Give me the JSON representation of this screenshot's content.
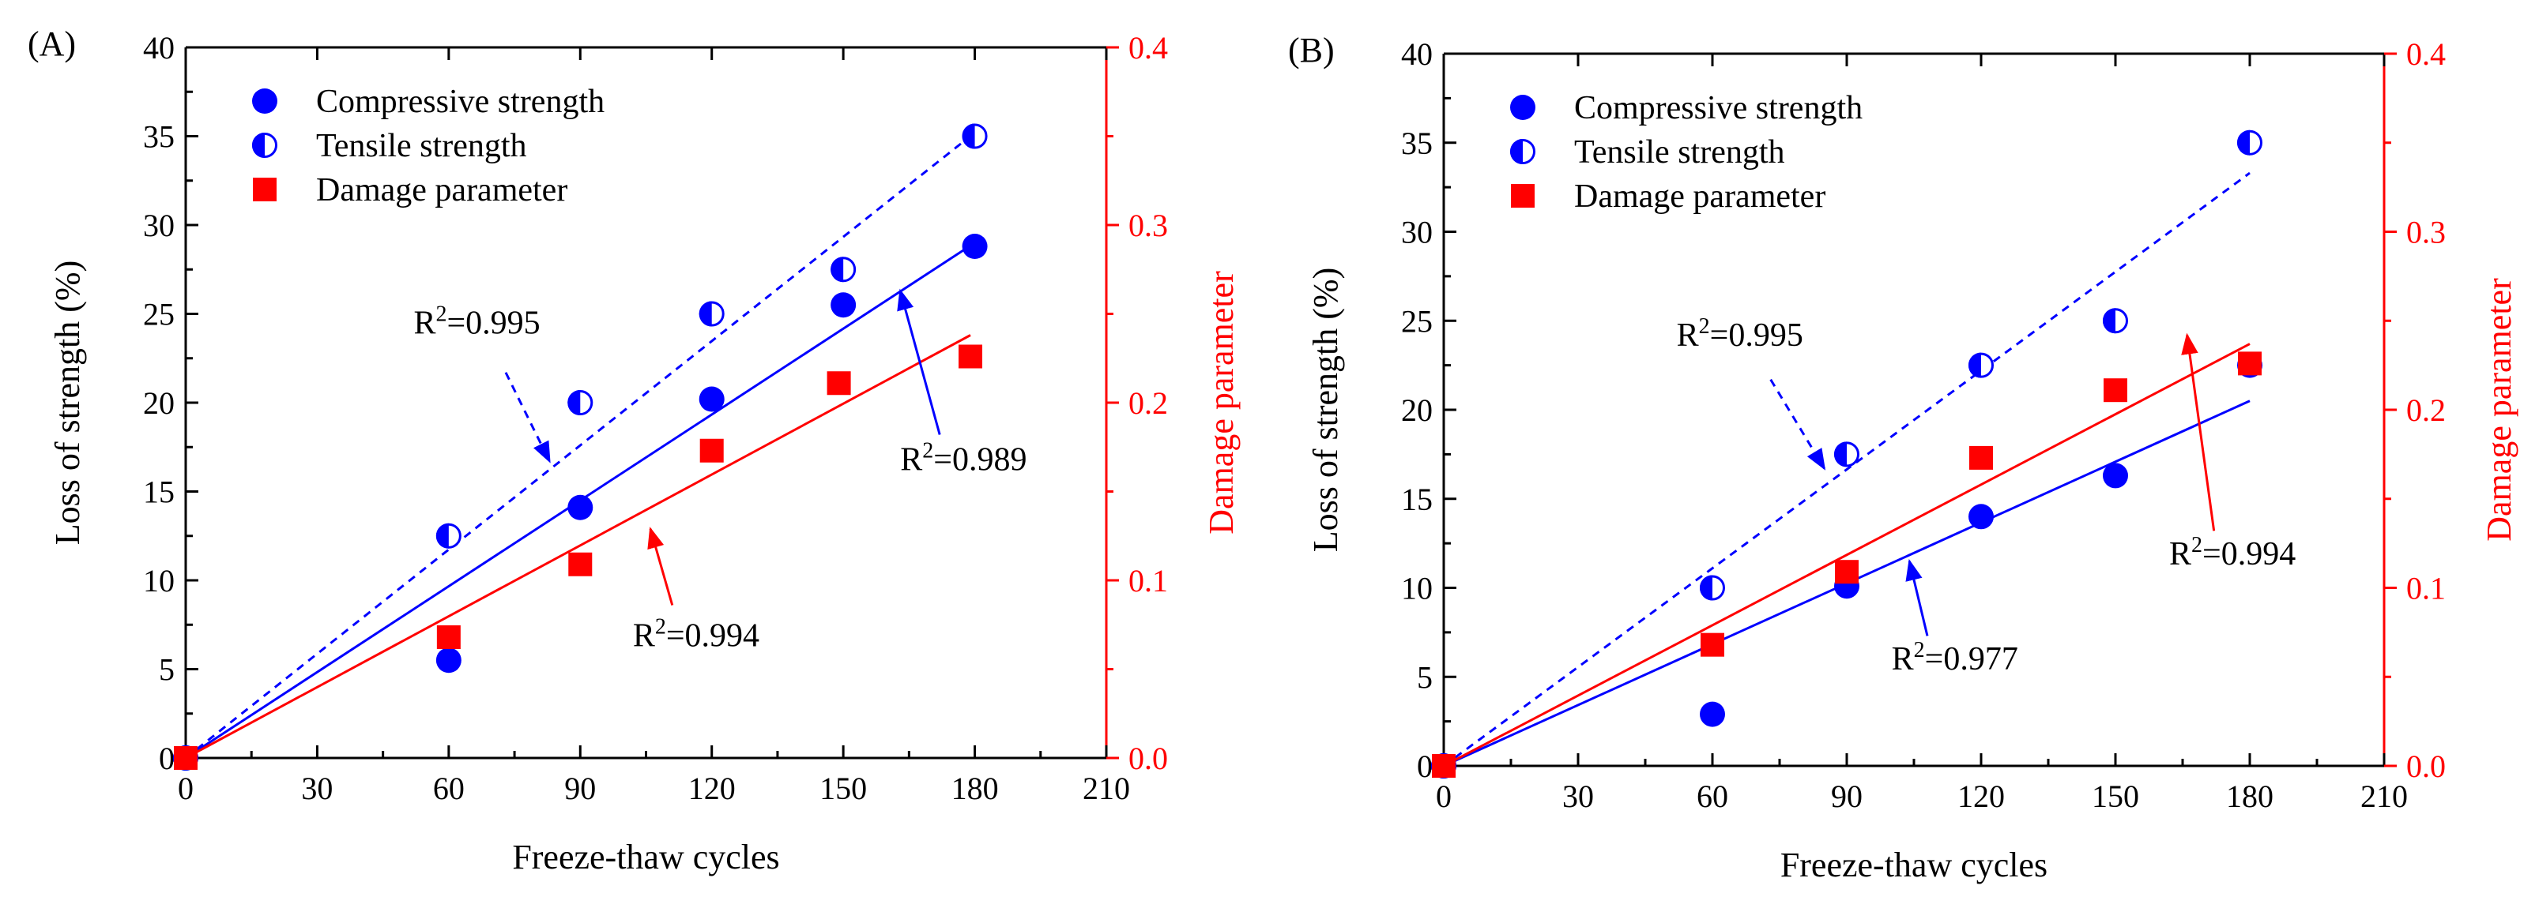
{
  "chart_data": [
    {
      "type": "scatter",
      "panel_label": "(A)",
      "xlabel": "Freeze-thaw cycles",
      "ylabel": "Loss of strength (%)",
      "y2label": "Damage parameter",
      "xlim": [
        0,
        210
      ],
      "ylim": [
        0,
        40
      ],
      "y2lim": [
        0.0,
        0.4
      ],
      "xticks": [
        "0",
        "30",
        "60",
        "90",
        "120",
        "150",
        "180",
        "210"
      ],
      "yticks": [
        "0",
        "5",
        "10",
        "15",
        "20",
        "25",
        "30",
        "35",
        "40"
      ],
      "y2ticks": [
        "0.0",
        "0.1",
        "0.2",
        "0.3",
        "0.4"
      ],
      "legend_position": "top-left",
      "series": [
        {
          "name": "Compressive strength",
          "marker": "filled-circle",
          "color": "#0000ff",
          "axis": "left",
          "x": [
            0,
            60,
            90,
            120,
            150,
            180
          ],
          "y": [
            0,
            5.5,
            14.1,
            20.2,
            25.5,
            28.8
          ],
          "fit": {
            "style": "solid",
            "x": [
              0,
              180
            ],
            "y": [
              0,
              29.0
            ]
          }
        },
        {
          "name": "Tensile strength",
          "marker": "half-filled-circle",
          "color": "#0000ff",
          "axis": "left",
          "x": [
            0,
            60,
            90,
            120,
            150,
            180
          ],
          "y": [
            0,
            12.5,
            20.0,
            25.0,
            27.5,
            35.0
          ],
          "fit": {
            "style": "dashed",
            "x": [
              0,
              180
            ],
            "y": [
              0,
              35.2
            ]
          }
        },
        {
          "name": "Damage parameter",
          "marker": "square",
          "color": "#ff0000",
          "axis": "right",
          "x": [
            0,
            60,
            90,
            120,
            149,
            179
          ],
          "y": [
            0,
            0.068,
            0.109,
            0.173,
            0.211,
            0.226
          ],
          "fit": {
            "style": "solid",
            "x": [
              0,
              179
            ],
            "y": [
              0,
              0.238
            ]
          }
        }
      ],
      "annotations": [
        {
          "text": "R",
          "sup": "2",
          "rest": "=0.995",
          "target_series": "Tensile strength",
          "text_x": 52,
          "text_y": 23.9,
          "arrow_from": [
            73,
            21.7
          ],
          "arrow_to": [
            83,
            16.7
          ],
          "arrow_style": "dashed"
        },
        {
          "text": "R",
          "sup": "2",
          "rest": "=0.989",
          "target_series": "Compressive strength",
          "text_x": 163,
          "text_y": 16.2,
          "arrow_from": [
            172,
            18.2
          ],
          "arrow_to": [
            163,
            26.3
          ],
          "arrow_style": "solid"
        },
        {
          "text": "R",
          "sup": "2",
          "rest": "=0.994",
          "target_series": "Damage parameter",
          "text_x": 102,
          "text_y": 6.3,
          "arrow_from": [
            111,
            8.6
          ],
          "arrow_to": [
            106,
            12.9
          ],
          "arrow_style": "solid-red"
        }
      ]
    },
    {
      "type": "scatter",
      "panel_label": "(B)",
      "xlabel": "Freeze-thaw cycles",
      "ylabel": "Loss of strength (%)",
      "y2label": "Damage parameter",
      "xlim": [
        0,
        210
      ],
      "ylim": [
        0,
        40
      ],
      "y2lim": [
        0.0,
        0.4
      ],
      "xticks": [
        "0",
        "30",
        "60",
        "90",
        "120",
        "150",
        "180",
        "210"
      ],
      "yticks": [
        "0",
        "5",
        "10",
        "15",
        "20",
        "25",
        "30",
        "35",
        "40"
      ],
      "y2ticks": [
        "0.0",
        "0.1",
        "0.2",
        "0.3",
        "0.4"
      ],
      "legend_position": "top-left",
      "series": [
        {
          "name": "Compressive strength",
          "marker": "filled-circle",
          "color": "#0000ff",
          "axis": "left",
          "x": [
            0,
            60,
            90,
            120,
            150,
            180
          ],
          "y": [
            0,
            2.9,
            10.1,
            14.0,
            16.3,
            22.5
          ],
          "fit": {
            "style": "solid",
            "x": [
              0,
              180
            ],
            "y": [
              0,
              20.5
            ]
          }
        },
        {
          "name": "Tensile strength",
          "marker": "half-filled-circle",
          "color": "#0000ff",
          "axis": "left",
          "x": [
            0,
            60,
            90,
            120,
            150,
            180
          ],
          "y": [
            0,
            10.0,
            17.5,
            22.5,
            25.0,
            35.0
          ],
          "fit": {
            "style": "dashed",
            "x": [
              0,
              180
            ],
            "y": [
              0,
              33.3
            ]
          }
        },
        {
          "name": "Damage parameter",
          "marker": "square",
          "color": "#ff0000",
          "axis": "right",
          "x": [
            0,
            60,
            90,
            120,
            150,
            180
          ],
          "y": [
            0,
            0.068,
            0.109,
            0.173,
            0.211,
            0.226
          ],
          "fit": {
            "style": "solid",
            "x": [
              0,
              180
            ],
            "y": [
              0,
              0.237
            ]
          }
        }
      ],
      "annotations": [
        {
          "text": "R",
          "sup": "2",
          "rest": "=0.995",
          "target_series": "Tensile strength",
          "text_x": 52,
          "text_y": 23.6,
          "arrow_from": [
            73,
            21.7
          ],
          "arrow_to": [
            85,
            16.7
          ],
          "arrow_style": "dashed"
        },
        {
          "text": "R",
          "sup": "2",
          "rest": "=0.977",
          "target_series": "Compressive strength",
          "text_x": 100,
          "text_y": 5.4,
          "arrow_from": [
            108,
            7.3
          ],
          "arrow_to": [
            104,
            11.5
          ],
          "arrow_style": "solid"
        },
        {
          "text": "R",
          "sup": "2",
          "rest": "=0.994",
          "target_series": "Damage parameter",
          "text_x": 162,
          "text_y": 11.3,
          "arrow_from": [
            172,
            13.2
          ],
          "arrow_to": [
            166,
            24.2
          ],
          "arrow_style": "solid-red"
        }
      ]
    }
  ]
}
